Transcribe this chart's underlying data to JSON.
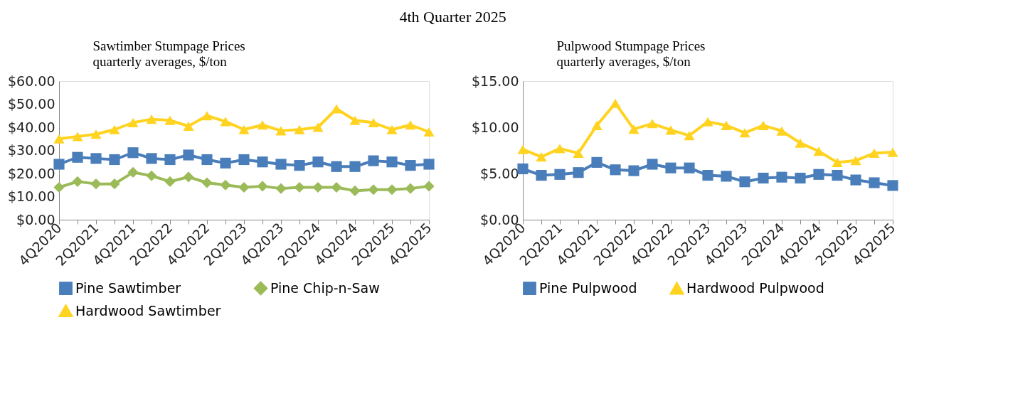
{
  "chart_data": [
    {
      "type": "line",
      "title": "Sawtimber Stumpage Prices",
      "subtitle": "quarterly averages, $/ton",
      "annotations": [
        "4th Quarter 2025"
      ],
      "categories": [
        "4Q2020",
        null,
        "2Q2021",
        null,
        "4Q2021",
        null,
        "2Q2022",
        null,
        "4Q2022",
        null,
        "2Q2023",
        null,
        "4Q2023",
        null,
        "2Q2024",
        null,
        "4Q2024",
        null,
        "2Q2025",
        null,
        "4Q2025"
      ],
      "series": [
        {
          "name": "Pine Sawtimber",
          "color": "#4a7ebb",
          "marker": "square",
          "values": [
            24,
            27,
            26.5,
            26,
            29,
            26.5,
            26,
            28,
            26,
            24.5,
            26,
            25,
            24,
            23.5,
            25,
            23,
            23,
            25.5,
            25,
            23.5,
            24
          ]
        },
        {
          "name": "Pine Chip-n-Saw",
          "color": "#9bbb59",
          "marker": "diamond",
          "values": [
            14,
            16.5,
            15.5,
            15.5,
            20.5,
            19,
            16.5,
            18.5,
            16,
            15,
            14,
            14.5,
            13.5,
            14,
            14,
            14,
            12.5,
            13,
            13,
            13.5,
            14.5
          ]
        },
        {
          "name": "Hardwood Sawtimber",
          "color": "#ffd320",
          "marker": "triangle",
          "values": [
            35,
            36,
            37,
            39,
            42,
            43.5,
            43,
            40.5,
            45,
            42.5,
            39,
            41,
            38.5,
            39,
            40,
            48,
            43,
            42,
            39,
            41,
            38
          ]
        }
      ],
      "ylim": [
        0,
        60
      ],
      "yticks": [
        {
          "value": 0,
          "label": "$0.00"
        },
        {
          "value": 10,
          "label": "$10.00"
        },
        {
          "value": 20,
          "label": "$20.00"
        },
        {
          "value": 30,
          "label": "$30.00"
        },
        {
          "value": 40,
          "label": "$40.00"
        },
        {
          "value": 50,
          "label": "$50.00"
        },
        {
          "value": 60,
          "label": "$60.00"
        }
      ],
      "grid": false,
      "legend": "bottom"
    },
    {
      "type": "line",
      "title": "Pulpwood Stumpage Prices",
      "subtitle": "quarterly averages, $/ton",
      "categories": [
        "4Q2020",
        null,
        "2Q2021",
        null,
        "4Q2021",
        null,
        "2Q2022",
        null,
        "4Q2022",
        null,
        "2Q2023",
        null,
        "4Q2023",
        null,
        "2Q2024",
        null,
        "4Q2024",
        null,
        "2Q2025",
        null,
        "4Q2025"
      ],
      "series": [
        {
          "name": "Pine Pulpwood",
          "color": "#4a7ebb",
          "marker": "square",
          "values": [
            5.5,
            4.8,
            4.9,
            5.1,
            6.2,
            5.4,
            5.3,
            6.0,
            5.6,
            5.6,
            4.8,
            4.7,
            4.1,
            4.5,
            4.6,
            4.5,
            4.9,
            4.8,
            4.3,
            4.0,
            3.7
          ]
        },
        {
          "name": "Hardwood Pulpwood",
          "color": "#ffd320",
          "marker": "triangle",
          "values": [
            7.6,
            6.8,
            7.7,
            7.2,
            10.2,
            12.6,
            9.8,
            10.4,
            9.7,
            9.1,
            10.6,
            10.2,
            9.4,
            10.2,
            9.6,
            8.3,
            7.4,
            6.2,
            6.4,
            7.2,
            7.3
          ]
        }
      ],
      "ylim": [
        0,
        15
      ],
      "yticks": [
        {
          "value": 0,
          "label": "$0.00"
        },
        {
          "value": 5,
          "label": "$5.00"
        },
        {
          "value": 10,
          "label": "$10.00"
        },
        {
          "value": 15,
          "label": "$15.00"
        }
      ],
      "grid": false,
      "legend": "bottom"
    }
  ]
}
